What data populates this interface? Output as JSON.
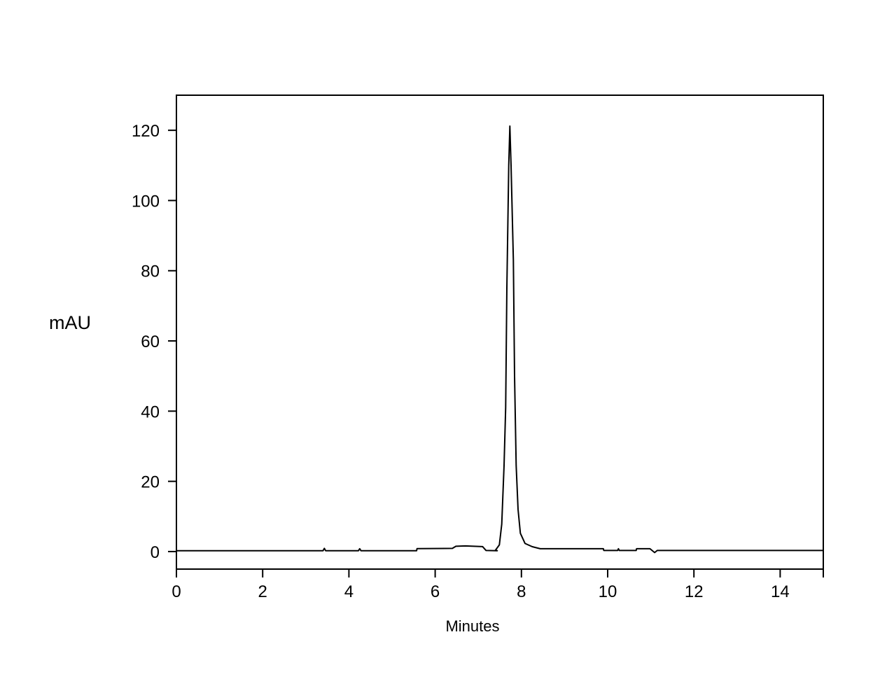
{
  "chart_data": {
    "type": "line",
    "title": "",
    "xlabel": "Minutes",
    "ylabel": "mAU",
    "xlim": [
      0,
      15
    ],
    "ylim": [
      -5,
      130
    ],
    "xticks": [
      0,
      2,
      4,
      6,
      8,
      10,
      12,
      14
    ],
    "xtick_labels": [
      "0",
      "2",
      "4",
      "6",
      "8",
      "10",
      "12",
      "14"
    ],
    "yticks": [
      0,
      20,
      40,
      60,
      80,
      100,
      120
    ],
    "ytick_labels": [
      "0",
      "20",
      "40",
      "60",
      "80",
      "100",
      "120"
    ],
    "grid": false,
    "line_color": "#000000",
    "series": [
      {
        "x": [
          0,
          3.4,
          3.43,
          3.46,
          4.22,
          4.25,
          4.28,
          5.57,
          5.58,
          6.4,
          6.48,
          6.7,
          7.1,
          7.18,
          7.44,
          7.4,
          7.489,
          7.544,
          7.597,
          7.635,
          7.662,
          7.706,
          7.732,
          7.76,
          7.813,
          7.841,
          7.878,
          7.922,
          7.976,
          8.084,
          8.247,
          8.437,
          9.9,
          9.91,
          10.23,
          10.25,
          10.27,
          10.66,
          10.67,
          10.98,
          11.09,
          11.15,
          15
        ],
        "y": [
          0.25,
          0.25,
          0.9,
          0.25,
          0.25,
          0.8,
          0.25,
          0.25,
          0.85,
          0.9,
          1.5,
          1.6,
          1.4,
          0.3,
          0.25,
          0.4,
          1.9,
          7.8,
          24.5,
          41,
          75,
          110,
          121.2,
          110,
          83,
          50,
          24.5,
          12,
          5.2,
          2.3,
          1.4,
          0.8,
          0.8,
          0.3,
          0.3,
          0.8,
          0.3,
          0.3,
          0.8,
          0.8,
          -0.3,
          0.3,
          0.3
        ]
      }
    ]
  }
}
